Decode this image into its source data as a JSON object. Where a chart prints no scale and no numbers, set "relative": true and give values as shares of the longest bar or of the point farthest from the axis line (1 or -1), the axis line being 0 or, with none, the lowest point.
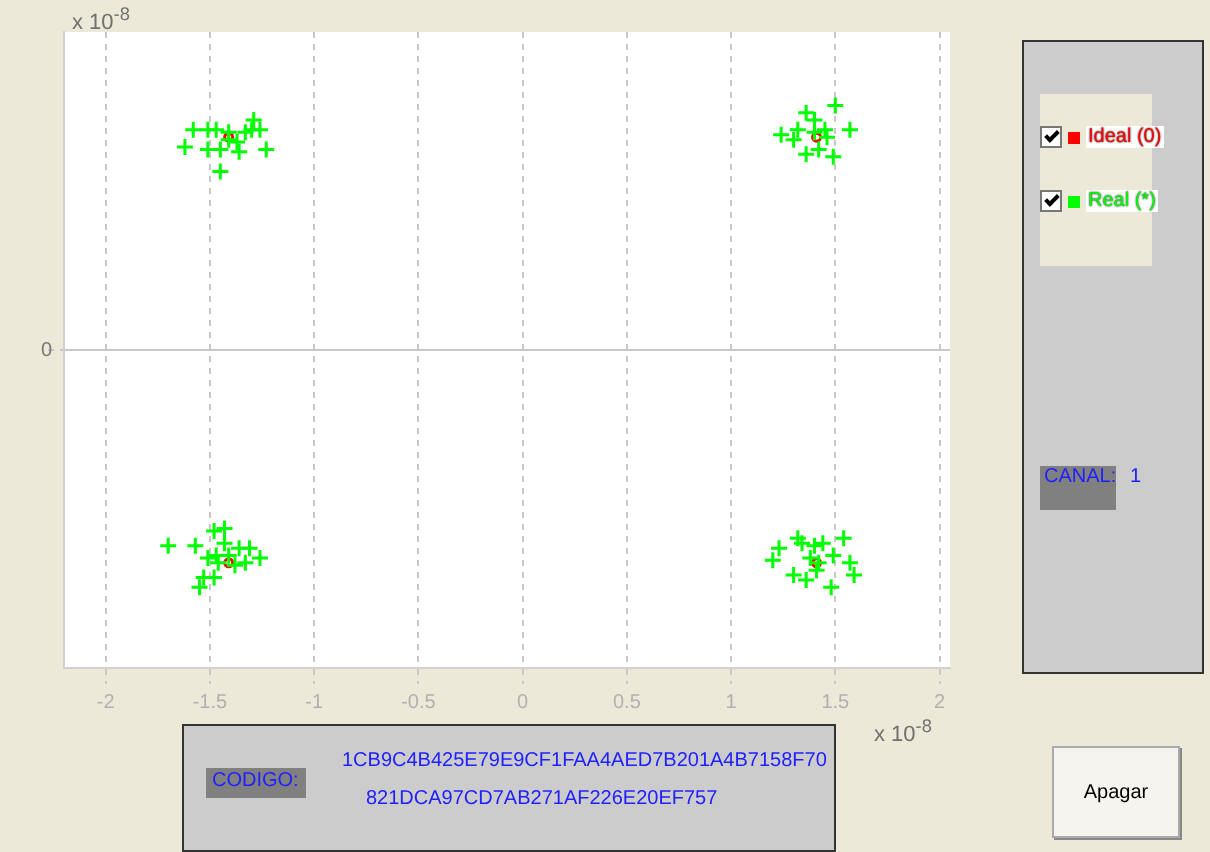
{
  "chart_data": {
    "type": "scatter",
    "relative": true,
    "xlim": [
      -2.2,
      2.05
    ],
    "xticks": [
      -2,
      -1.5,
      -1,
      -0.5,
      0,
      0.5,
      1,
      1.5,
      2
    ],
    "grid": true,
    "legend": "right",
    "annotations": [
      "x 10$^{-8}$",
      "x 10$^{-8}$",
      "CANAL:",
      "1",
      "CODIGO:",
      "1CB9C4B425E79E9CF1FAA4AED7B201A4B7158F70",
      "821DCA97CD7AB271AF226E20EF757",
      "Apagar",
      "0"
    ],
    "series": [
      {
        "name": "Real (*)",
        "color": "#00ff00",
        "marker": "cross",
        "x": [
          -1.58,
          -1.51,
          -1.47,
          -1.41,
          -1.29,
          -1.3,
          -1.26,
          -1.62,
          -1.51,
          -1.37,
          -1.45,
          -1.36,
          -1.23,
          -1.45,
          -1.41,
          -1.33,
          1.24,
          1.3,
          1.36,
          1.4,
          1.45,
          1.5,
          1.57,
          1.42,
          1.49,
          1.36,
          1.4,
          1.46,
          1.32,
          -1.7,
          -1.57,
          -1.48,
          -1.43,
          -1.51,
          -1.46,
          -1.53,
          -1.48,
          -1.55,
          -1.41,
          -1.36,
          -1.31,
          -1.26,
          -1.38,
          -1.43,
          -1.33,
          -1.47,
          1.2,
          1.23,
          1.32,
          1.34,
          1.4,
          1.44,
          1.54,
          1.49,
          1.57,
          1.59,
          1.48,
          1.36,
          1.41,
          1.3,
          1.38,
          1.42
        ],
        "values": [
          0.9,
          0.9,
          0.9,
          0.89,
          0.94,
          0.9,
          0.9,
          0.83,
          0.82,
          0.85,
          0.82,
          0.81,
          0.82,
          0.73,
          0.86,
          0.89,
          0.88,
          0.86,
          0.97,
          0.94,
          0.9,
          1.0,
          0.9,
          0.82,
          0.79,
          0.8,
          0.89,
          0.87,
          0.9,
          -0.8,
          -0.8,
          -0.74,
          -0.73,
          -0.85,
          -0.87,
          -0.93,
          -0.93,
          -0.97,
          -0.84,
          -0.81,
          -0.81,
          -0.85,
          -0.88,
          -0.79,
          -0.87,
          -0.84,
          -0.86,
          -0.81,
          -0.77,
          -0.79,
          -0.8,
          -0.79,
          -0.77,
          -0.84,
          -0.87,
          -0.92,
          -0.97,
          -0.94,
          -0.9,
          -0.92,
          -0.85,
          -0.87
        ]
      },
      {
        "name": "Ideal (0)",
        "color": "#ff0000",
        "marker": "circle",
        "x": [
          -1.41,
          1.41,
          -1.41,
          1.41
        ],
        "values": [
          0.87,
          0.87,
          -0.87,
          -0.87
        ]
      }
    ]
  }
}
